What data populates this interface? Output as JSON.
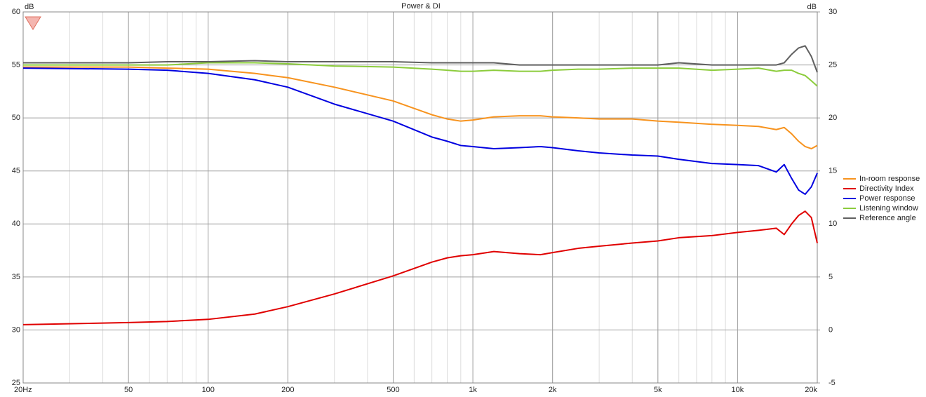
{
  "chart_data": {
    "type": "line",
    "title": "Power & DI",
    "ylabel": "dB",
    "y2label": "dB",
    "log_x": true,
    "grid": true,
    "legend": "right",
    "xlim": [
      20,
      20000
    ],
    "xticks": [
      {
        "value": 20,
        "label": "20Hz"
      },
      50,
      100,
      200,
      500,
      {
        "value": 1000,
        "label": "1k"
      },
      {
        "value": 2000,
        "label": "2k"
      },
      {
        "value": 5000,
        "label": "5k"
      },
      {
        "value": 10000,
        "label": "10k"
      },
      {
        "value": 20000,
        "label": "20k"
      }
    ],
    "ylim": [
      25,
      60
    ],
    "yticks": [
      25,
      30,
      35,
      40,
      45,
      50,
      55,
      60
    ],
    "y2lim": [
      -5,
      30
    ],
    "y2ticks": [
      -5,
      0,
      5,
      10,
      15,
      20,
      25,
      30
    ],
    "x": [
      20,
      50,
      70,
      100,
      150,
      200,
      300,
      500,
      700,
      800,
      900,
      1000,
      1200,
      1500,
      1800,
      2000,
      2500,
      3000,
      4000,
      5000,
      6000,
      8000,
      10000,
      12000,
      14000,
      15000,
      16000,
      17000,
      18000,
      19000,
      20000
    ],
    "series": [
      {
        "name": "In-room response",
        "color": "#f7931e",
        "values": [
          54.8,
          54.8,
          54.7,
          54.6,
          54.2,
          53.8,
          52.9,
          51.6,
          50.3,
          49.9,
          49.7,
          49.8,
          50.1,
          50.2,
          50.2,
          50.1,
          50.0,
          49.9,
          49.9,
          49.7,
          49.6,
          49.4,
          49.3,
          49.2,
          48.9,
          49.1,
          48.5,
          47.8,
          47.3,
          47.1,
          47.4
        ]
      },
      {
        "name": "Directivity Index",
        "color": "#e00000",
        "axis": "y2",
        "values": [
          0.5,
          0.7,
          0.8,
          1.0,
          1.5,
          2.2,
          3.4,
          5.1,
          6.4,
          6.8,
          7.0,
          7.1,
          7.4,
          7.2,
          7.1,
          7.3,
          7.7,
          7.9,
          8.2,
          8.4,
          8.7,
          8.9,
          9.2,
          9.4,
          9.6,
          9.0,
          10.0,
          10.8,
          11.2,
          10.6,
          8.2
        ]
      },
      {
        "name": "Power response",
        "color": "#0000e0",
        "values": [
          54.7,
          54.6,
          54.5,
          54.2,
          53.6,
          52.9,
          51.3,
          49.7,
          48.2,
          47.8,
          47.4,
          47.3,
          47.1,
          47.2,
          47.3,
          47.2,
          46.9,
          46.7,
          46.5,
          46.4,
          46.1,
          45.7,
          45.6,
          45.5,
          44.9,
          45.6,
          44.3,
          43.2,
          42.8,
          43.5,
          44.8
        ]
      },
      {
        "name": "Listening window",
        "color": "#8ccc3c",
        "values": [
          55.0,
          55.0,
          55.0,
          55.2,
          55.2,
          55.1,
          54.9,
          54.8,
          54.6,
          54.5,
          54.4,
          54.4,
          54.5,
          54.4,
          54.4,
          54.5,
          54.6,
          54.6,
          54.7,
          54.7,
          54.7,
          54.5,
          54.6,
          54.7,
          54.4,
          54.5,
          54.5,
          54.2,
          54.0,
          53.5,
          53.0
        ]
      },
      {
        "name": "Reference angle",
        "color": "#606060",
        "values": [
          55.2,
          55.2,
          55.3,
          55.3,
          55.4,
          55.3,
          55.3,
          55.3,
          55.2,
          55.2,
          55.2,
          55.2,
          55.2,
          55.0,
          55.0,
          55.0,
          55.0,
          55.0,
          55.0,
          55.0,
          55.2,
          55.0,
          55.0,
          55.0,
          55.0,
          55.2,
          56.0,
          56.6,
          56.8,
          55.8,
          54.3
        ]
      }
    ]
  }
}
